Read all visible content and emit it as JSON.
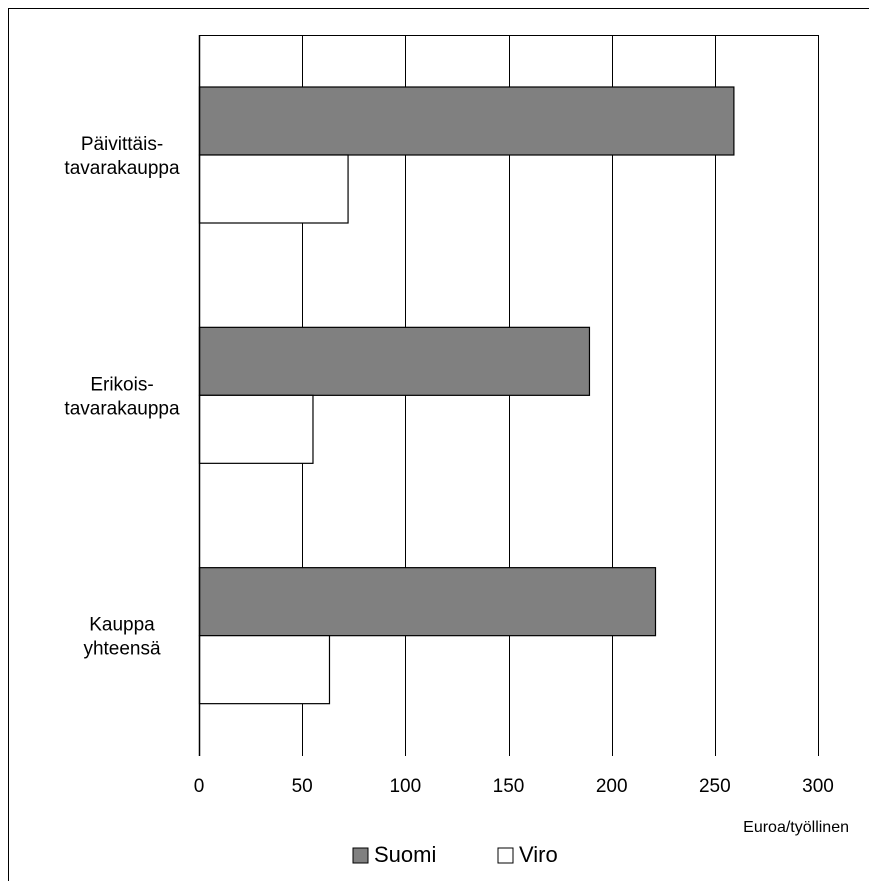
{
  "chart_data": {
    "type": "bar",
    "orientation": "horizontal",
    "categories": [
      [
        "Päivittäis-",
        "tavarakauppa"
      ],
      [
        "Erikois-",
        "tavarakauppa"
      ],
      [
        "Kauppa",
        "yhteensä"
      ]
    ],
    "series": [
      {
        "name": "Suomi",
        "values": [
          259,
          189,
          221
        ],
        "color": "#808080"
      },
      {
        "name": "Viro",
        "values": [
          72,
          55,
          63
        ],
        "color": "#ffffff"
      }
    ],
    "x_ticks": [
      0,
      50,
      100,
      150,
      200,
      250,
      300
    ],
    "xlim": [
      0,
      300
    ],
    "xlabel": "Euroa/työllinen",
    "ylabel": "",
    "title": "",
    "grid": "vertical",
    "legend_position": "bottom"
  }
}
